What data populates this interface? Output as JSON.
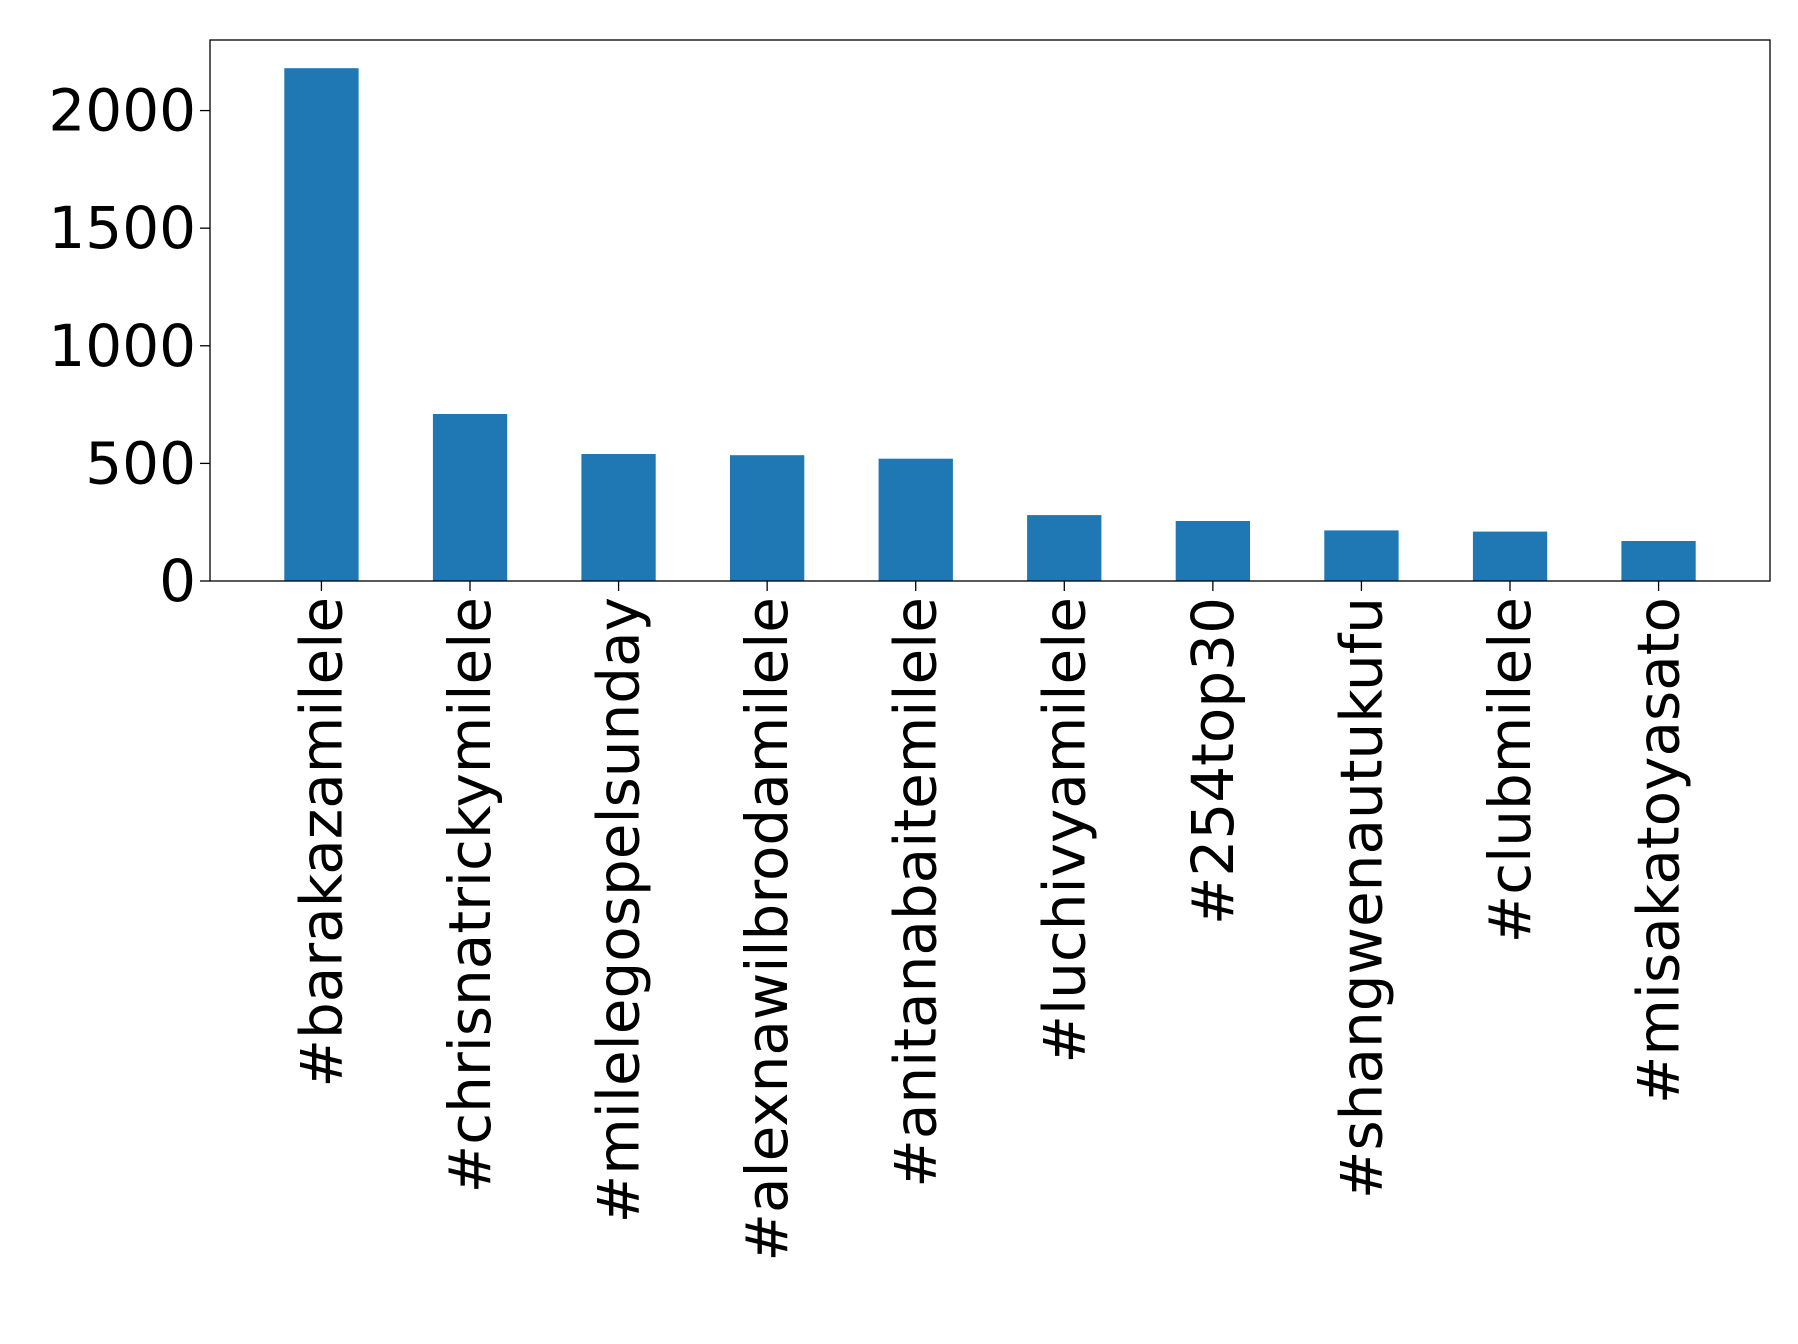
{
  "chart_data": {
    "type": "bar",
    "categories": [
      "#barakazamilele",
      "#chrisnatrickymilele",
      "#milelegospelsunday",
      "#alexnawilbrodamilele",
      "#anitanabaitemilele",
      "#luchivyamilele",
      "#254top30",
      "#shangwenautukufu",
      "#clubmilele",
      "#misakatoyasato"
    ],
    "values": [
      2180,
      710,
      540,
      535,
      520,
      280,
      255,
      215,
      210,
      170
    ],
    "ylim": [
      0,
      2300
    ],
    "yticks": [
      0,
      500,
      1000,
      1500,
      2000
    ],
    "grid": false,
    "legend": "none",
    "bar_color": "#1f77b4",
    "axis_color": "#000000"
  }
}
